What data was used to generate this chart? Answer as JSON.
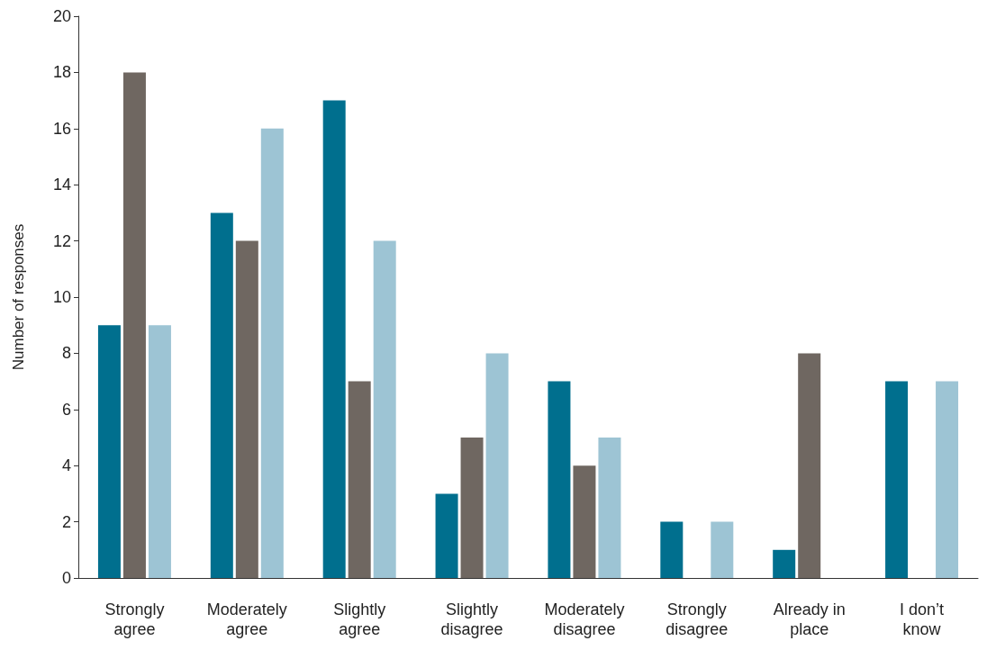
{
  "chart_data": {
    "type": "bar",
    "ylabel": "Number of responses",
    "categories": [
      "Strongly\nagree",
      "Moderately\nagree",
      "Slightly\nagree",
      "Slightly\ndisagree",
      "Moderately\ndisagree",
      "Strongly\ndisagree",
      "Already in\nplace",
      "I don’t\nknow"
    ],
    "series": [
      {
        "color": "#006f8e",
        "values": [
          9,
          13,
          17,
          3,
          7,
          2,
          1,
          7
        ]
      },
      {
        "color": "#6f6761",
        "values": [
          18,
          12,
          7,
          5,
          4,
          0,
          8,
          0
        ]
      },
      {
        "color": "#9dc4d4",
        "values": [
          9,
          16,
          12,
          8,
          5,
          2,
          0,
          7
        ]
      }
    ],
    "ylim": [
      0,
      20
    ],
    "yticks": [
      0,
      2,
      4,
      6,
      8,
      10,
      12,
      14,
      16,
      18,
      20
    ],
    "grid": false
  }
}
